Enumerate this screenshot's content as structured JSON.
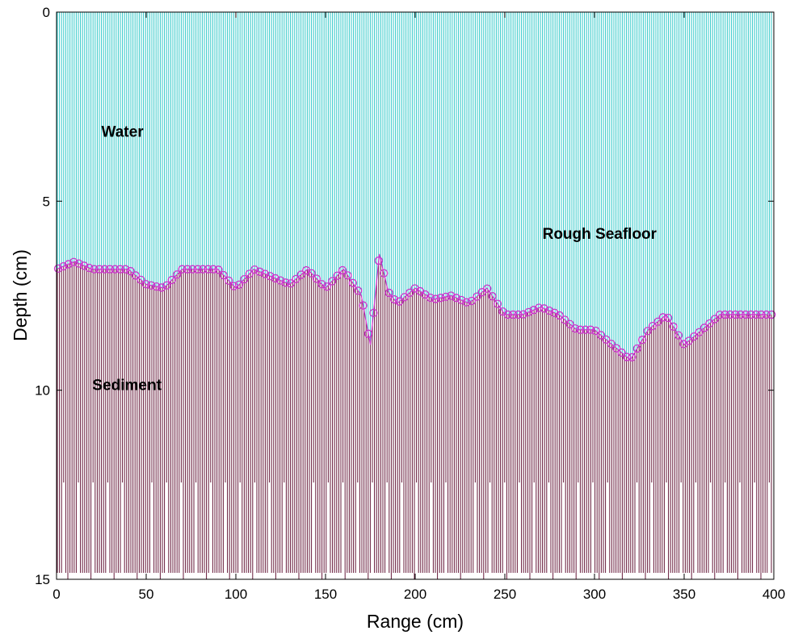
{
  "chart_data": {
    "type": "line",
    "title": "",
    "xlabel": "Range (cm)",
    "ylabel": "Depth (cm)",
    "xlim": [
      0,
      400
    ],
    "ylim": [
      0,
      15
    ],
    "y_axis_reversed": true,
    "x_ticks": [
      0,
      50,
      100,
      150,
      200,
      250,
      300,
      350,
      400
    ],
    "y_ticks": [
      0,
      5,
      10,
      15
    ],
    "x_tick_labels": [
      "0",
      "50",
      "100",
      "150",
      "200",
      "250",
      "300",
      "350",
      "400"
    ],
    "y_tick_labels": [
      "0",
      "5",
      "10",
      "15"
    ],
    "grid": false,
    "annotations": [
      {
        "text": "Water",
        "x": 25,
        "y": 3.3
      },
      {
        "text": "Rough Seafloor",
        "x": 271,
        "y": 6.0
      },
      {
        "text": "Sediment",
        "x": 20,
        "y": 10.0
      }
    ],
    "colors": {
      "water": "#33c9c9",
      "sediment": "#661a3a",
      "seafloor_marker": "#cc33cc",
      "axis": "#000000"
    },
    "series": [
      {
        "marker": "circle",
        "x": [
          0,
          10,
          20,
          30,
          40,
          50,
          60,
          70,
          80,
          90,
          100,
          110,
          120,
          130,
          140,
          150,
          160,
          170,
          175,
          180,
          185,
          190,
          200,
          210,
          220,
          230,
          240,
          250,
          260,
          270,
          280,
          290,
          300,
          310,
          320,
          330,
          340,
          350,
          360,
          370,
          380,
          390,
          396
        ],
        "y": [
          6.8,
          6.6,
          6.8,
          6.8,
          6.8,
          7.2,
          7.3,
          6.8,
          6.8,
          6.8,
          7.3,
          6.8,
          7.0,
          7.2,
          6.8,
          7.3,
          6.8,
          7.5,
          8.8,
          6.4,
          7.4,
          7.7,
          7.3,
          7.6,
          7.5,
          7.7,
          7.3,
          8.0,
          8.0,
          7.8,
          8.0,
          8.4,
          8.4,
          8.8,
          9.2,
          8.4,
          8.0,
          8.8,
          8.4,
          8.0,
          8.0,
          8.0,
          8.0
        ]
      }
    ]
  }
}
